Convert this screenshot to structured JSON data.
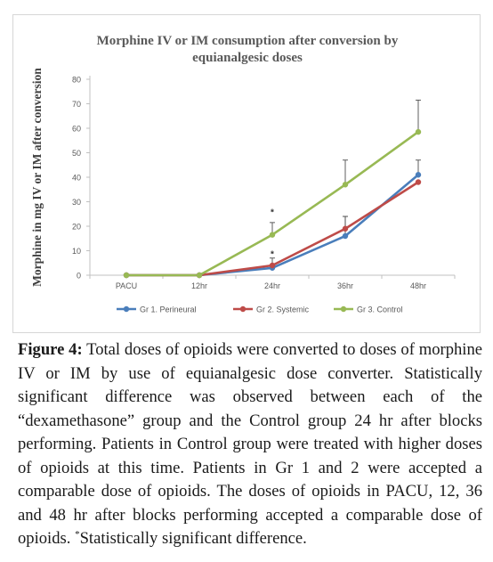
{
  "chart_data": {
    "type": "line",
    "title": "Morphine IV or IM consumption after conversion by equianalgesic doses",
    "title_lines": [
      "Morphine IV or IM consumption after conversion by",
      "equianalgesic doses"
    ],
    "ylabel": "Morphine in mg IV or IM after conversion",
    "xlabel": "",
    "categories": [
      "PACU",
      "12hr",
      "24hr",
      "36hr",
      "48hr"
    ],
    "ylim": [
      0,
      80
    ],
    "yticks": [
      0,
      10,
      20,
      30,
      40,
      50,
      60,
      70,
      80
    ],
    "grid": false,
    "legend_position": "bottom",
    "series": [
      {
        "name": "Gr 1. Perineural",
        "color": "#4a7ebb",
        "values": [
          0,
          0,
          3,
          16,
          41
        ],
        "error_upper": [
          null,
          null,
          null,
          8,
          6
        ]
      },
      {
        "name": "Gr 2. Systemic",
        "color": "#be4b48",
        "values": [
          0,
          0,
          4,
          19,
          38
        ],
        "error_upper": [
          null,
          null,
          3,
          5,
          null
        ]
      },
      {
        "name": "Gr 3. Control",
        "color": "#98b954",
        "values": [
          0,
          0,
          16.5,
          37,
          58.5
        ],
        "error_upper": [
          null,
          null,
          5,
          10,
          13
        ]
      }
    ],
    "significance_marks": [
      {
        "text": "*",
        "category": "24hr",
        "y": 24.5
      },
      {
        "text": "*",
        "category": "24hr",
        "y": 7.5
      }
    ]
  },
  "caption": {
    "label": "Figure 4:",
    "text": " Total doses of opioids were converted to doses of morphine IV or IM by use of equianalgesic dose converter. Statistically significant difference was observed between each of the “dexamethasone” group and the Control group 24 hr after blocks performing. Patients in Control group were treated with higher doses of opioids at this time. Patients in Gr 1 and 2 were accepted a comparable dose of opioids. The doses of opioids in PACU, 12, 36 and 48 hr after blocks performing accepted a comparable dose of opioids. ",
    "footnote_mark": "*",
    "footnote_text": "Statistically significant difference."
  }
}
